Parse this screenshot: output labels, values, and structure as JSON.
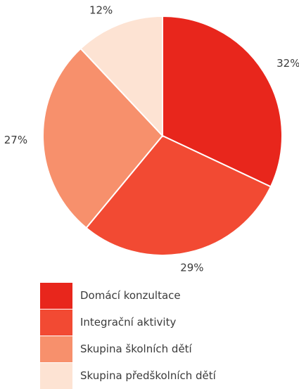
{
  "chart_data": {
    "type": "pie",
    "title": "",
    "slices": [
      {
        "label": "Domácí konzultace",
        "value": 32,
        "display": "32%",
        "color": "#e8261c"
      },
      {
        "label": "Integrační aktivity",
        "value": 29,
        "display": "29%",
        "color": "#f24a33"
      },
      {
        "label": "Skupina školních dětí",
        "value": 27,
        "display": "27%",
        "color": "#f7906c"
      },
      {
        "label": "Skupina předškolních dětí",
        "value": 12,
        "display": "12%",
        "color": "#fde3d3"
      }
    ],
    "legend_position": "bottom-left"
  }
}
